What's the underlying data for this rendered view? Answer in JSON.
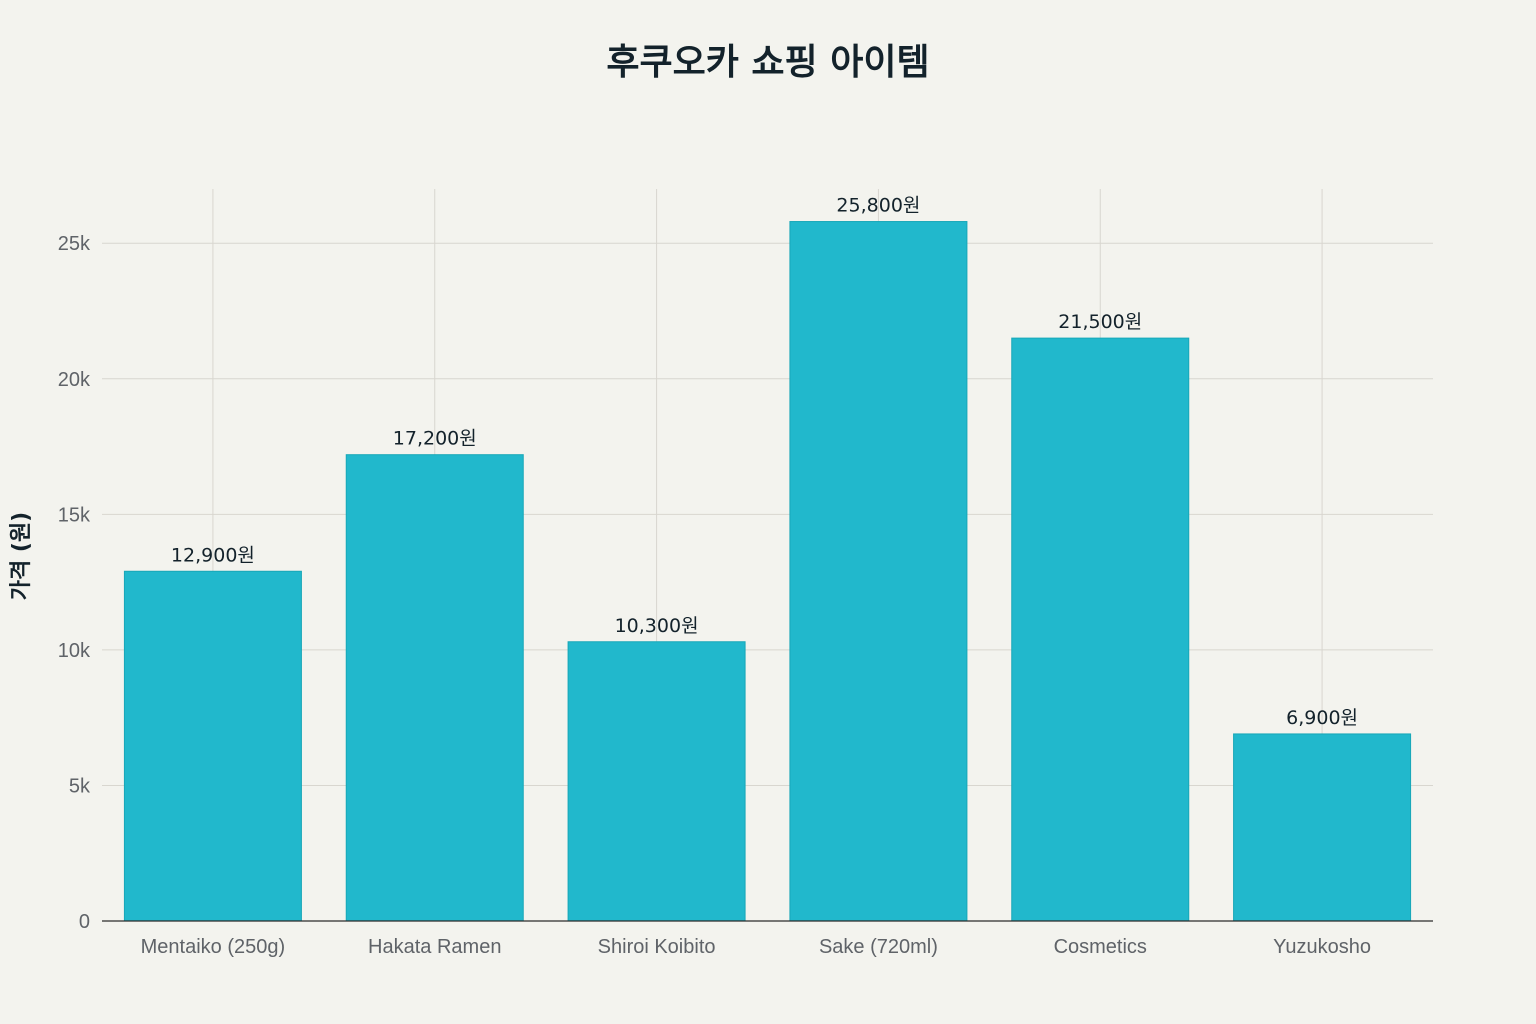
{
  "chart_data": {
    "type": "bar",
    "title": "후쿠오카 쇼핑 아이템",
    "xlabel": "",
    "ylabel": "가격 (원)",
    "categories": [
      "Mentaiko (250g)",
      "Hakata Ramen",
      "Shiroi Koibito",
      "Sake (720ml)",
      "Cosmetics",
      "Yuzukosho"
    ],
    "values": [
      12900,
      17200,
      10300,
      25800,
      21500,
      6900
    ],
    "data_labels": [
      "12,900원",
      "17,200원",
      "10,300원",
      "25,800원",
      "21,500원",
      "6,900원"
    ],
    "ylim": [
      0,
      27000
    ],
    "yticks": [
      0,
      5000,
      10000,
      15000,
      20000,
      25000
    ],
    "ytick_labels": [
      "0",
      "5k",
      "10k",
      "15k",
      "20k",
      "25k"
    ],
    "grid": true,
    "legend": "none",
    "colors": {
      "bar": "#21b8cc",
      "background": "#f3f3ee"
    }
  }
}
